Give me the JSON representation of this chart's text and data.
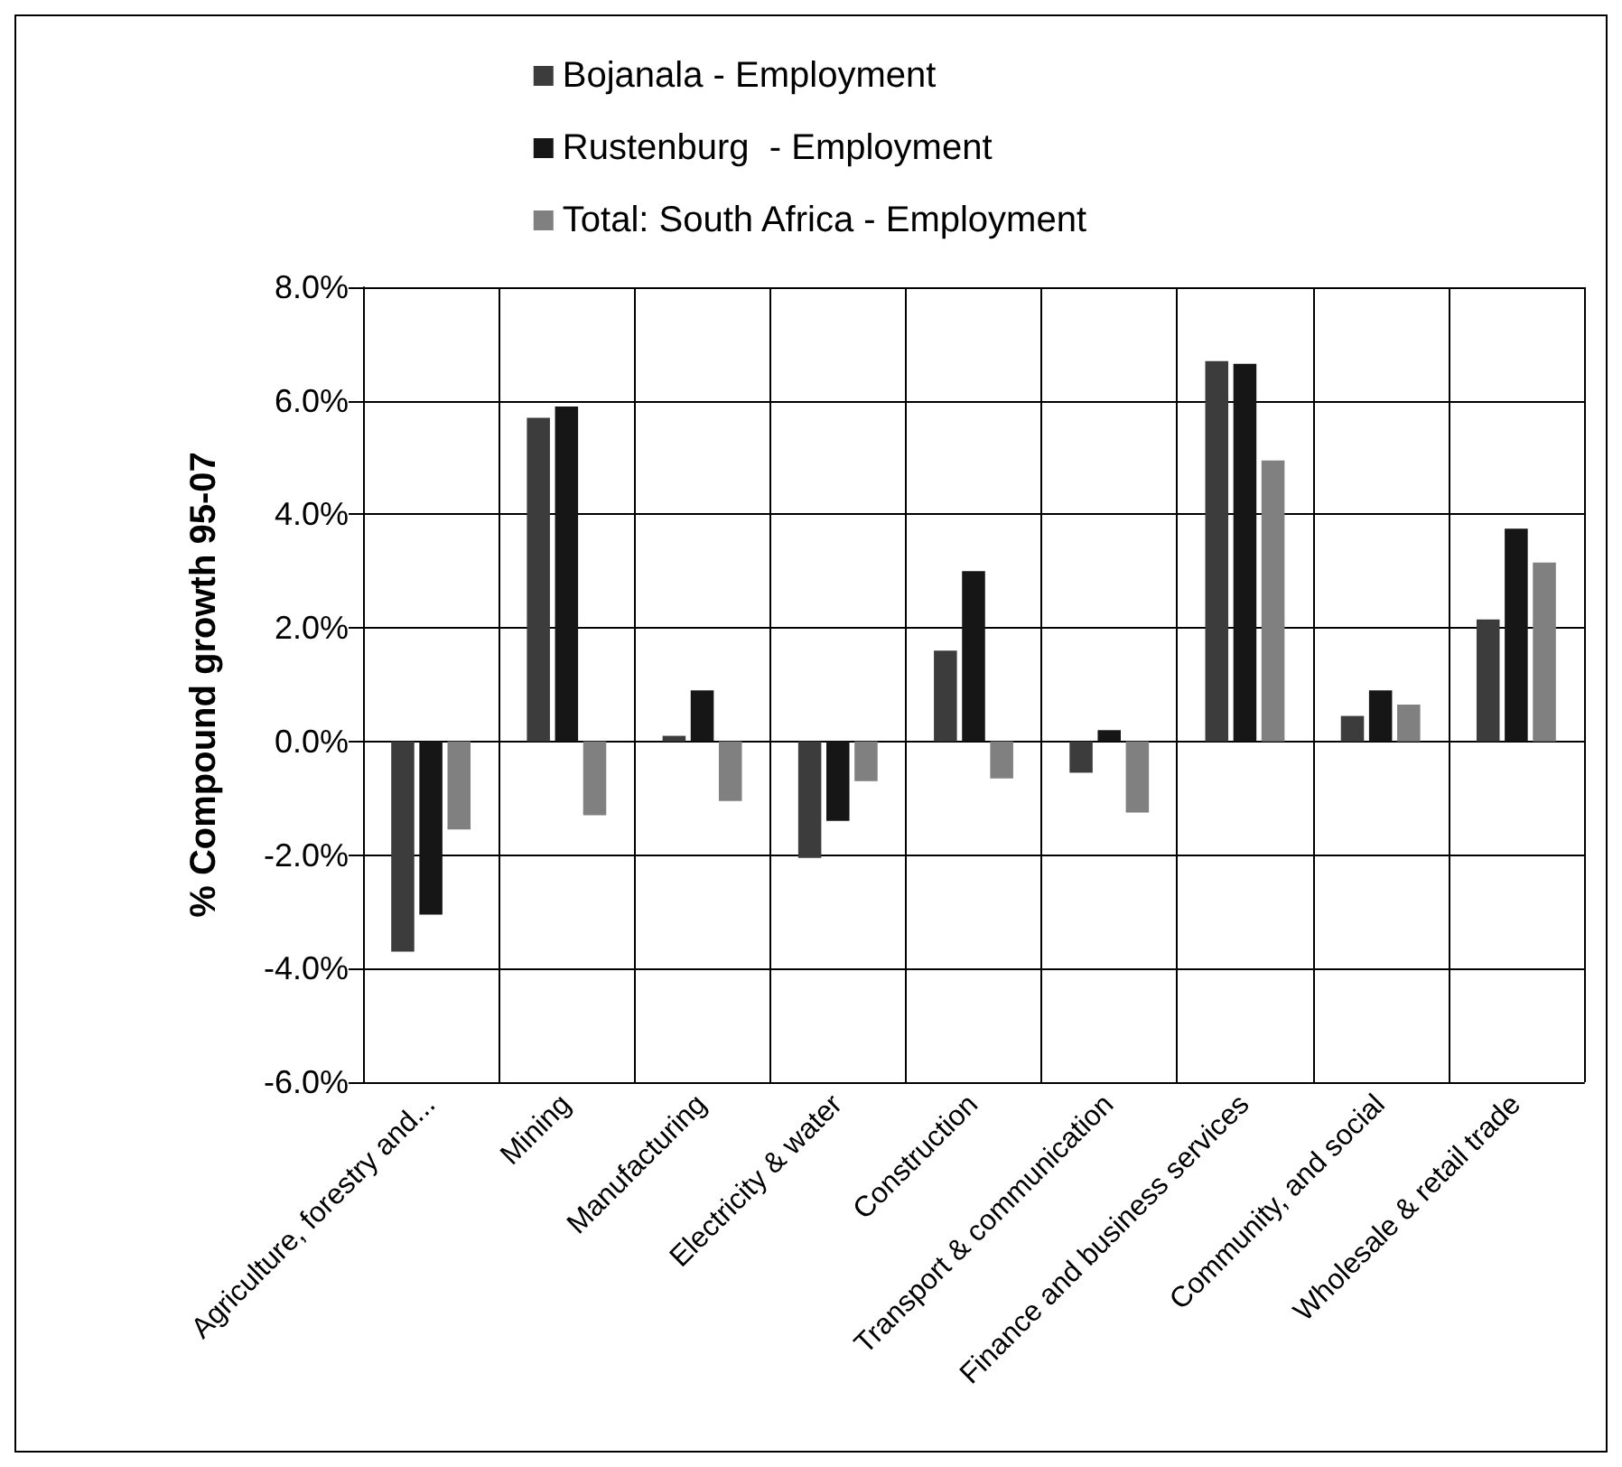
{
  "chart_data": {
    "type": "bar",
    "ylabel": "% Compound growth 95-07",
    "categories": [
      "Agriculture, forestry and...",
      "Mining",
      "Manufacturing",
      "Electricity & water",
      "Construction",
      "Transport & communication",
      "Finance and business services",
      "Community, and social",
      "Wholesale & retail trade"
    ],
    "series": [
      {
        "name": "Bojanala - Employment",
        "color": "#3c3c3c",
        "values": [
          -3.7,
          5.7,
          0.1,
          -2.05,
          1.6,
          -0.55,
          6.7,
          0.45,
          2.15
        ]
      },
      {
        "name": "Rustenburg  - Employment",
        "color": "#161616",
        "values": [
          -3.05,
          5.9,
          0.9,
          -1.4,
          3.0,
          0.2,
          6.65,
          0.9,
          3.75
        ]
      },
      {
        "name": "Total: South Africa - Employment",
        "color": "#808080",
        "values": [
          -1.55,
          -1.3,
          -1.05,
          -0.7,
          -0.65,
          -1.25,
          4.95,
          0.65,
          3.15
        ]
      }
    ],
    "ylim": [
      -6,
      8
    ],
    "yticks": [
      {
        "value": -6,
        "label": "-6.0%"
      },
      {
        "value": -4,
        "label": "-4.0%"
      },
      {
        "value": -2,
        "label": "-2.0%"
      },
      {
        "value": 0,
        "label": "0.0%"
      },
      {
        "value": 2,
        "label": "2.0%"
      },
      {
        "value": 4,
        "label": "4.0%"
      },
      {
        "value": 6,
        "label": "6.0%"
      },
      {
        "value": 8,
        "label": "8.0%"
      }
    ],
    "grid": true,
    "legend": "top"
  }
}
